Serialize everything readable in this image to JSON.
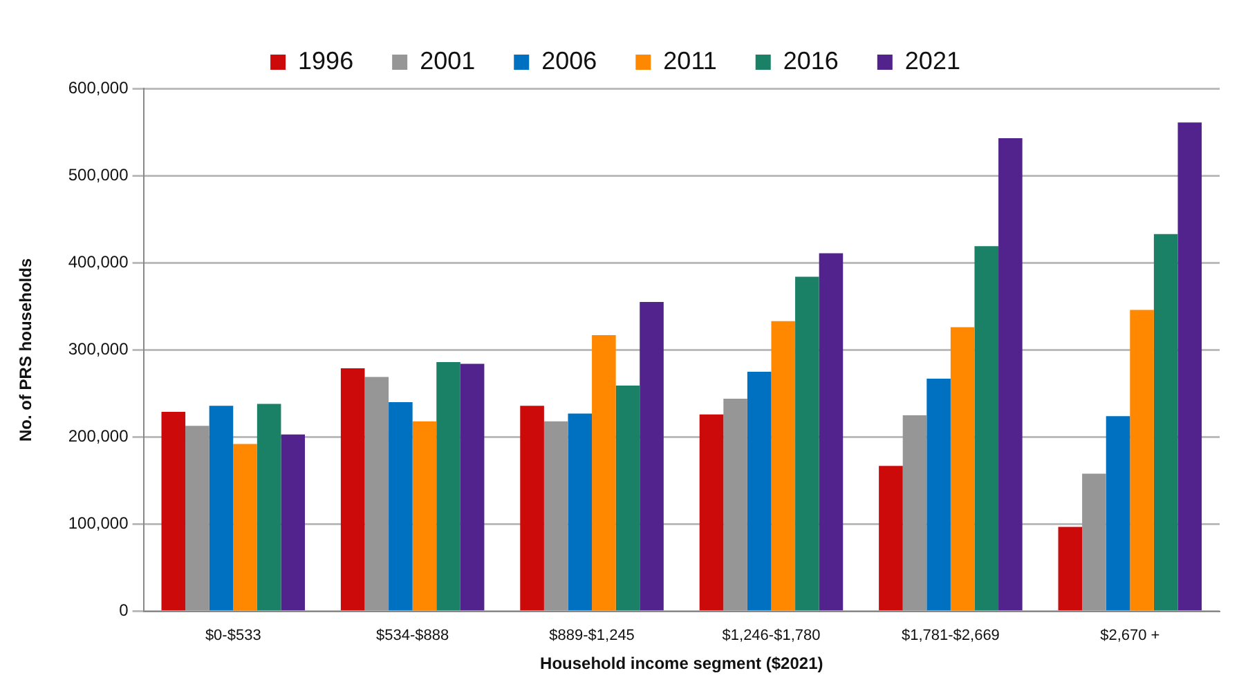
{
  "chart_data": {
    "type": "bar",
    "xlabel": "Household income segment ($2021)",
    "ylabel": "No. of PRS households",
    "categories": [
      "$0-$533",
      "$534-$888",
      "$889-$1,245",
      "$1,246-$1,780",
      "$1,781-$2,669",
      "$2,670 +"
    ],
    "series": [
      {
        "name": "1996",
        "color": "#cc0a0a",
        "values": [
          229000,
          279000,
          236000,
          226000,
          167000,
          97000
        ]
      },
      {
        "name": "2001",
        "color": "#969696",
        "values": [
          213000,
          269000,
          218000,
          244000,
          225000,
          158000
        ]
      },
      {
        "name": "2006",
        "color": "#0070c0",
        "values": [
          236000,
          240000,
          227000,
          275000,
          267000,
          224000
        ]
      },
      {
        "name": "2011",
        "color": "#ff8800",
        "values": [
          192000,
          218000,
          317000,
          333000,
          326000,
          346000
        ]
      },
      {
        "name": "2016",
        "color": "#1a8066",
        "values": [
          238000,
          286000,
          259000,
          384000,
          419000,
          433000
        ]
      },
      {
        "name": "2021",
        "color": "#52238c",
        "values": [
          203000,
          284000,
          355000,
          411000,
          543000,
          561000
        ]
      }
    ],
    "ylim": [
      0,
      600000
    ],
    "yticks": [
      0,
      {
        "value": 100000,
        "label": "100,000"
      },
      {
        "value": 200000,
        "label": "200,000"
      },
      {
        "value": 300000,
        "label": "300,000"
      },
      {
        "value": 400000,
        "label": "400,000"
      },
      {
        "value": 500000,
        "label": "500,000"
      },
      {
        "value": 600000,
        "label": "600,000"
      }
    ],
    "grid": "y",
    "legend": "top"
  }
}
